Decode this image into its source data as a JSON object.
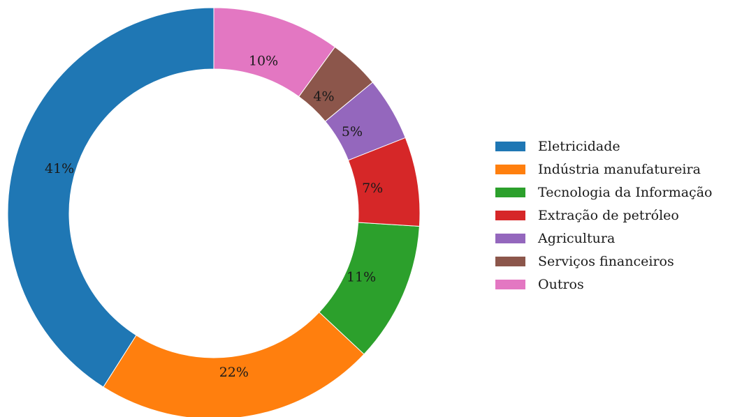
{
  "chart_data": {
    "type": "pie",
    "variant": "donut",
    "title": "",
    "categories": [
      "Eletricidade",
      "Indústria manufatureira",
      "Tecnologia da Informação",
      "Extração de petróleo",
      "Agricultura",
      "Serviços financeiros",
      "Outros"
    ],
    "values": [
      41,
      22,
      11,
      7,
      5,
      4,
      10
    ],
    "value_labels": [
      "41%",
      "22%",
      "11%",
      "7%",
      "5%",
      "4%",
      "10%"
    ],
    "colors": [
      "#1f77b4",
      "#ff7f0e",
      "#2ca02c",
      "#d62728",
      "#9467bd",
      "#8c564b",
      "#e377c2"
    ],
    "start_angle_deg": 90,
    "direction": "counterclockwise",
    "legend_placement": "right"
  }
}
